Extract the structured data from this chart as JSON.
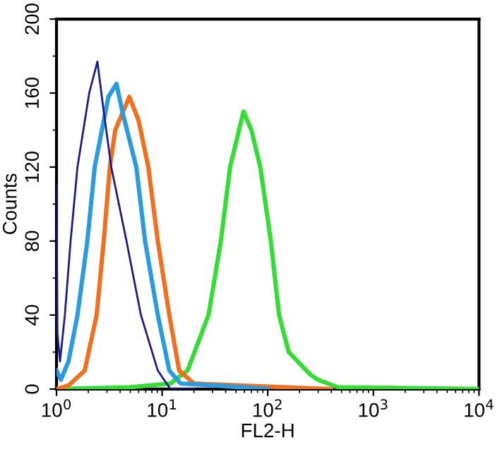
{
  "chart_data": {
    "type": "line",
    "xlabel": "FL2-H",
    "ylabel": "Counts",
    "log": "x",
    "xlim": [
      1,
      10000
    ],
    "ylim": [
      0,
      200
    ],
    "xticks": [
      {
        "value": 1,
        "label": "10$^{0}$"
      },
      {
        "value": 10,
        "label": "10$^{1}$"
      },
      {
        "value": 100,
        "label": "10$^{2}$"
      },
      {
        "value": 1000,
        "label": "10$^{3}$"
      },
      {
        "value": 10000,
        "label": "10$^{4}$"
      }
    ],
    "yticks": [
      0,
      40,
      80,
      120,
      160,
      200
    ],
    "marker": "none",
    "line_style": "solid",
    "series": [
      {
        "color": "#1c1c8e",
        "x": [
          1,
          1.02,
          1.08,
          1.2,
          1.36,
          1.58,
          2.04,
          2.44,
          2.8,
          3.3,
          4.6,
          6.3,
          9.1,
          12,
          20
        ],
        "values": [
          110,
          30,
          15,
          40,
          80,
          120,
          160,
          177,
          150,
          120,
          80,
          40,
          10,
          0,
          0
        ]
      },
      {
        "color": "#2b9be0",
        "x": [
          1,
          1.1,
          1.3,
          1.58,
          1.96,
          2.3,
          3.1,
          3.7,
          4.2,
          5.7,
          6.9,
          9.1,
          11.7,
          15,
          30,
          100
        ],
        "values": [
          10,
          5,
          15,
          40,
          80,
          120,
          158,
          165,
          150,
          120,
          80,
          40,
          10,
          3,
          2,
          0
        ]
      },
      {
        "color": "#f07020",
        "x": [
          1,
          1.3,
          1.85,
          2.4,
          2.8,
          3.2,
          3.6,
          4.9,
          6,
          7.4,
          9.1,
          11.7,
          14.5,
          20,
          50,
          400
        ],
        "values": [
          0,
          2,
          10,
          40,
          80,
          120,
          140,
          158,
          145,
          120,
          80,
          40,
          10,
          3,
          2,
          0
        ]
      },
      {
        "color": "#33dd33",
        "x": [
          1,
          5,
          12,
          17.4,
          27.5,
          36,
          44,
          59,
          70,
          85,
          107,
          128,
          158,
          251,
          300,
          463,
          10000
        ],
        "values": [
          0,
          1,
          3,
          10,
          40,
          80,
          120,
          150,
          140,
          120,
          80,
          40,
          20,
          8,
          5,
          1,
          0
        ]
      }
    ]
  }
}
